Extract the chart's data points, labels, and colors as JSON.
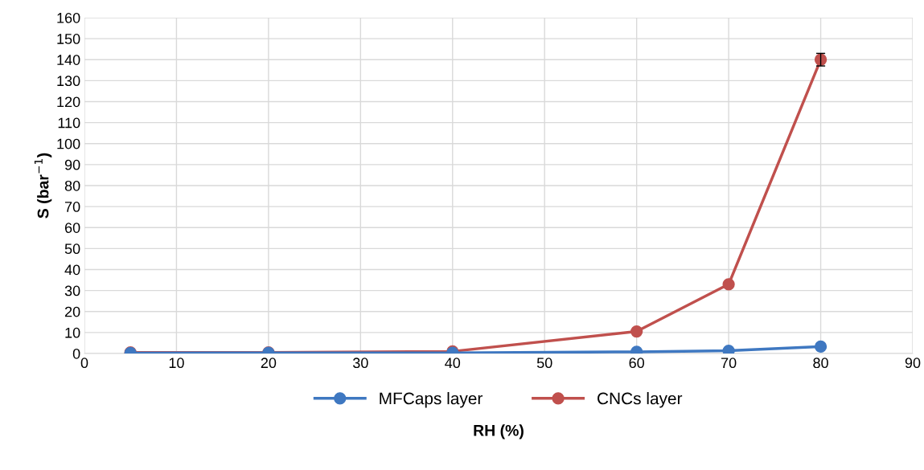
{
  "chart_data": {
    "type": "line",
    "xlabel": "RH (%)",
    "ylabel": "S (bar$^{−1}$)",
    "x": [
      5,
      20,
      40,
      60,
      70,
      80
    ],
    "series": [
      {
        "name": "MFCaps layer",
        "color": "#3f78c1",
        "values": [
          0.2,
          0.3,
          0.3,
          0.8,
          1.3,
          3.3
        ]
      },
      {
        "name": "CNCs layer",
        "color": "#c0504d",
        "values": [
          0.5,
          0.5,
          1,
          10.5,
          33,
          140
        ],
        "errors": [
          null,
          null,
          null,
          null,
          null,
          3
        ]
      }
    ],
    "xlim": [
      0,
      90
    ],
    "xticks": [
      0,
      10,
      20,
      30,
      40,
      50,
      60,
      70,
      80,
      90
    ],
    "ylim": [
      0,
      160
    ],
    "yticks": [
      0,
      10,
      20,
      30,
      40,
      50,
      60,
      70,
      80,
      90,
      100,
      110,
      120,
      130,
      140,
      150,
      160
    ],
    "grid": true,
    "legend": "bottom",
    "marker": "circle",
    "line_style": "solid"
  }
}
